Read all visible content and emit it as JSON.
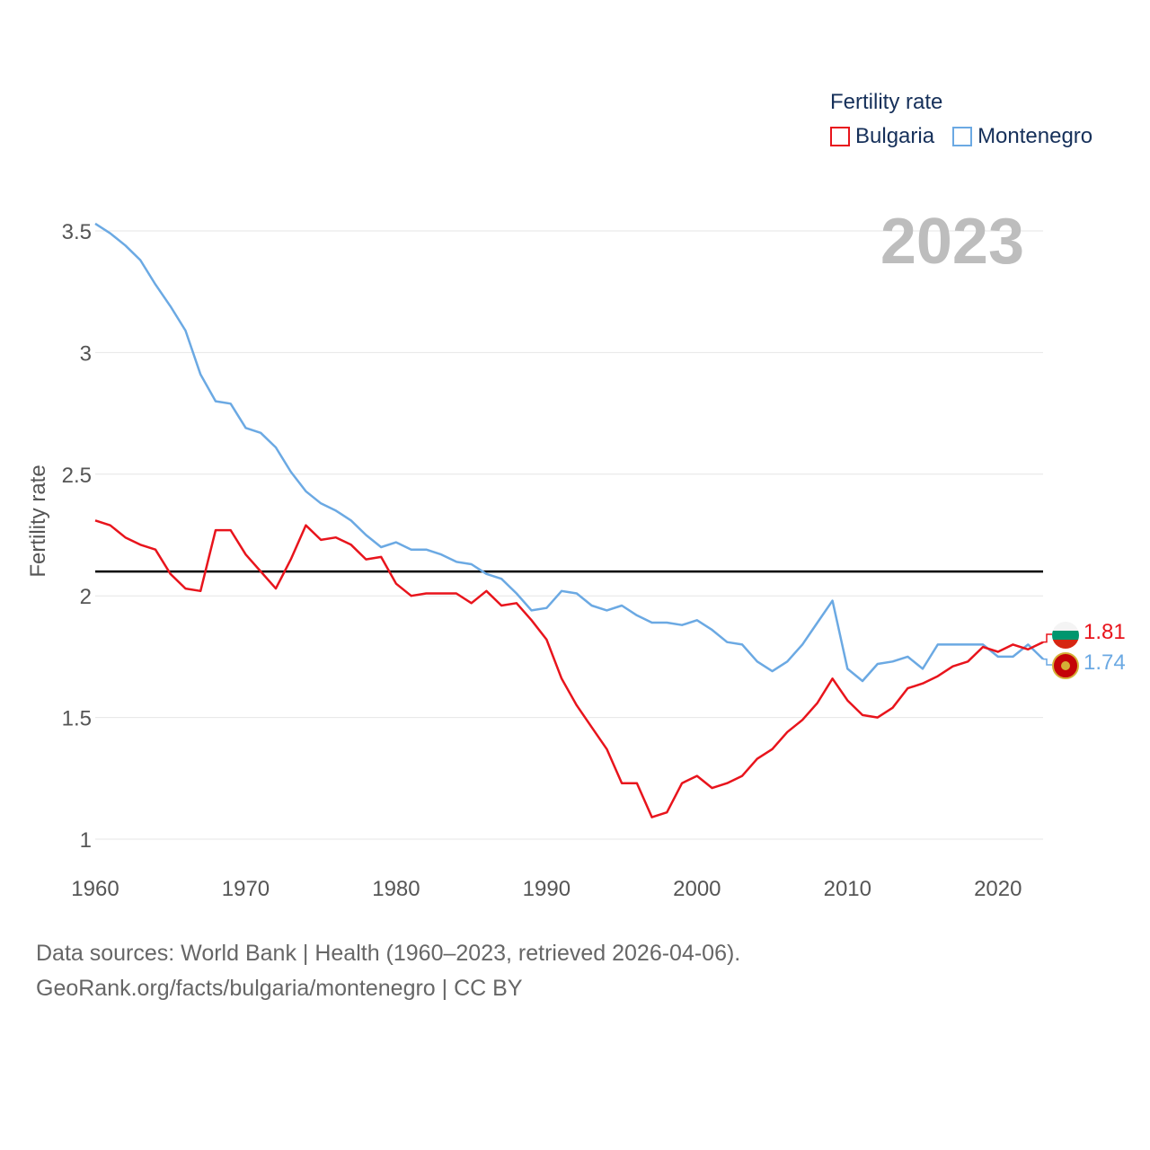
{
  "colors": {
    "bulgaria": "#e8141c",
    "montenegro": "#6ba9e3",
    "reference": "#000000",
    "grid": "#e6e6e6",
    "axis_text": "#555555"
  },
  "legend": {
    "title": "Fertility rate",
    "items": [
      "Bulgaria",
      "Montenegro"
    ]
  },
  "current_year": "2023",
  "end_values": {
    "bulgaria": "1.81",
    "montenegro": "1.74"
  },
  "footer": {
    "line1": "Data sources: World Bank | Health (1960–2023, retrieved 2026-04-06).",
    "line2": "GeoRank.org/facts/bulgaria/montenegro | CC BY"
  },
  "chart_data": {
    "type": "line",
    "title": "",
    "xlabel": "",
    "ylabel": "Fertility rate",
    "xlim": [
      1960,
      2023
    ],
    "ylim": [
      1,
      3.5
    ],
    "x_ticks": [
      1960,
      1970,
      1980,
      1990,
      2000,
      2010,
      2020
    ],
    "y_ticks": [
      1,
      1.5,
      2,
      2.5,
      3,
      3.5
    ],
    "y_tick_labels": [
      "1",
      "1.5",
      "2",
      "2.5",
      "3",
      "3.5"
    ],
    "reference_line": 2.1,
    "x": [
      1960,
      1961,
      1962,
      1963,
      1964,
      1965,
      1966,
      1967,
      1968,
      1969,
      1970,
      1971,
      1972,
      1973,
      1974,
      1975,
      1976,
      1977,
      1978,
      1979,
      1980,
      1981,
      1982,
      1983,
      1984,
      1985,
      1986,
      1987,
      1988,
      1989,
      1990,
      1991,
      1992,
      1993,
      1994,
      1995,
      1996,
      1997,
      1998,
      1999,
      2000,
      2001,
      2002,
      2003,
      2004,
      2005,
      2006,
      2007,
      2008,
      2009,
      2010,
      2011,
      2012,
      2013,
      2014,
      2015,
      2016,
      2017,
      2018,
      2019,
      2020,
      2021,
      2022,
      2023
    ],
    "series": [
      {
        "name": "Bulgaria",
        "values": [
          2.31,
          2.29,
          2.24,
          2.21,
          2.19,
          2.09,
          2.03,
          2.02,
          2.27,
          2.27,
          2.17,
          2.1,
          2.03,
          2.15,
          2.29,
          2.23,
          2.24,
          2.21,
          2.15,
          2.16,
          2.05,
          2.0,
          2.01,
          2.01,
          2.01,
          1.97,
          2.02,
          1.96,
          1.97,
          1.9,
          1.82,
          1.66,
          1.55,
          1.46,
          1.37,
          1.23,
          1.23,
          1.09,
          1.11,
          1.23,
          1.26,
          1.21,
          1.23,
          1.26,
          1.33,
          1.37,
          1.44,
          1.49,
          1.56,
          1.66,
          1.57,
          1.51,
          1.5,
          1.54,
          1.62,
          1.64,
          1.67,
          1.71,
          1.73,
          1.79,
          1.77,
          1.8,
          1.78,
          1.81
        ]
      },
      {
        "name": "Montenegro",
        "values": [
          3.53,
          3.49,
          3.44,
          3.38,
          3.28,
          3.19,
          3.09,
          2.91,
          2.8,
          2.79,
          2.69,
          2.67,
          2.61,
          2.51,
          2.43,
          2.38,
          2.35,
          2.31,
          2.25,
          2.2,
          2.22,
          2.19,
          2.19,
          2.17,
          2.14,
          2.13,
          2.09,
          2.07,
          2.01,
          1.94,
          1.95,
          2.02,
          2.01,
          1.96,
          1.94,
          1.96,
          1.92,
          1.89,
          1.89,
          1.88,
          1.9,
          1.86,
          1.81,
          1.8,
          1.73,
          1.69,
          1.73,
          1.8,
          1.89,
          1.98,
          1.7,
          1.65,
          1.72,
          1.73,
          1.75,
          1.7,
          1.8,
          1.8,
          1.8,
          1.8,
          1.75,
          1.75,
          1.8,
          1.74
        ]
      }
    ]
  }
}
